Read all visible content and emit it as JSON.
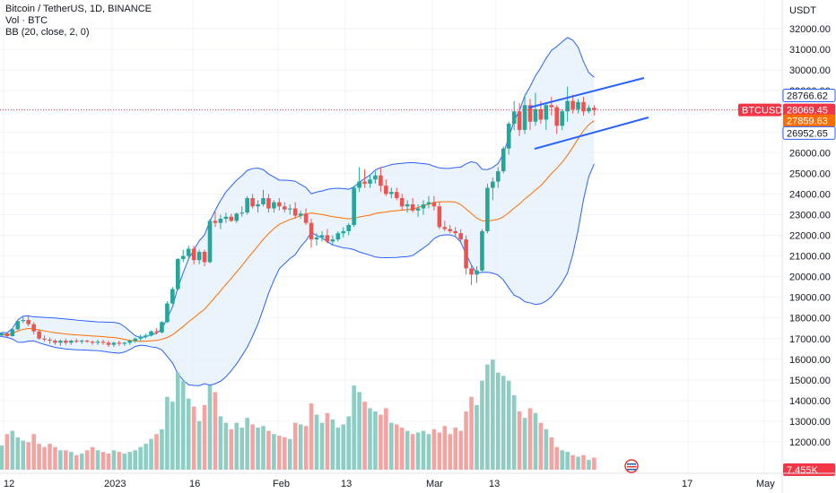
{
  "legend": {
    "line1": "Bitcoin / TetherUS, 1D, BINANCE",
    "line2": "Vol · BTC",
    "line3": "BB (20, close, 2, 0)"
  },
  "price_scale": {
    "unit": "USDT",
    "ticks": [
      "32000.00",
      "31000.00",
      "30000.00",
      "29000.00",
      "28000.00",
      "27000.00",
      "26000.00",
      "25000.00",
      "24000.00",
      "23000.00",
      "22000.00",
      "21000.00",
      "20000.00",
      "19000.00",
      "18000.00",
      "17000.00",
      "16000.00",
      "15000.00",
      "14000.00",
      "13000.00",
      "12000.00"
    ],
    "tick_values": [
      32000,
      31000,
      30000,
      29000,
      28000,
      27000,
      26000,
      25000,
      24000,
      23000,
      22000,
      21000,
      20000,
      19000,
      18000,
      17000,
      16000,
      15000,
      14000,
      13000,
      12000
    ]
  },
  "time_scale": {
    "labels": [
      "12",
      "2023",
      "16",
      "Feb",
      "13",
      "Mar",
      "13",
      "17",
      "May"
    ]
  },
  "price_tags": [
    {
      "text": "28766.62",
      "value": 28766.62,
      "style": "outline"
    },
    {
      "text": "BTCUSDT",
      "value": 28069.45,
      "style": "red-left"
    },
    {
      "text": "28069.45",
      "value": 28069.45,
      "style": "red"
    },
    {
      "text": "27859.63",
      "value": 27859.63,
      "style": "orange"
    },
    {
      "text": "26952.65",
      "value": 26952.65,
      "style": "outline"
    },
    {
      "text": "7.455K",
      "value": null,
      "style": "red-volume"
    }
  ],
  "colors": {
    "up": "#26a69a",
    "down": "#ef5350",
    "vol_up": "#8dcdc3",
    "vol_down": "#f5a3a1",
    "bb_band": "#2962ff",
    "bb_fill": "#e3f0fb",
    "basis": "#ff6d00",
    "trendline": "#2962ff",
    "last_price": "#f23645"
  },
  "chart_data": {
    "type": "candlestick",
    "symbol": "BTCUSDT",
    "interval": "1D",
    "exchange": "BINANCE",
    "ylim": [
      11600,
      32500
    ],
    "last_price": 28069.45,
    "candles": [
      [
        17100,
        17180,
        16980,
        17150,
        19
      ],
      [
        17150,
        17300,
        17080,
        17250,
        15
      ],
      [
        17250,
        17280,
        17080,
        17120,
        22
      ],
      [
        17120,
        17500,
        17100,
        17450,
        24
      ],
      [
        17450,
        17900,
        17400,
        17850,
        20
      ],
      [
        17850,
        18050,
        17750,
        17900,
        18
      ],
      [
        17900,
        18150,
        17600,
        17700,
        17
      ],
      [
        17700,
        17800,
        17200,
        17350,
        22
      ],
      [
        17350,
        17450,
        16950,
        17000,
        16
      ],
      [
        17000,
        17150,
        16850,
        16950,
        14
      ],
      [
        16950,
        17050,
        16750,
        16900,
        16
      ],
      [
        16900,
        16980,
        16700,
        16800,
        14
      ],
      [
        16800,
        16950,
        16650,
        16900,
        12
      ],
      [
        16900,
        17000,
        16700,
        16800,
        12
      ],
      [
        16800,
        16950,
        16700,
        16900,
        11
      ],
      [
        16900,
        17000,
        16800,
        16850,
        9
      ],
      [
        16850,
        16950,
        16750,
        16900,
        10
      ],
      [
        16900,
        16950,
        16800,
        16850,
        12
      ],
      [
        16850,
        16900,
        16700,
        16800,
        14
      ],
      [
        16800,
        16950,
        16700,
        16850,
        12
      ],
      [
        16850,
        16950,
        16700,
        16800,
        11
      ],
      [
        16800,
        16900,
        16600,
        16700,
        10
      ],
      [
        16700,
        16850,
        16600,
        16800,
        12
      ],
      [
        16800,
        16900,
        16650,
        16750,
        11
      ],
      [
        16750,
        16850,
        16650,
        16800,
        10
      ],
      [
        16800,
        16950,
        16700,
        16900,
        11
      ],
      [
        16900,
        17050,
        16800,
        17000,
        12
      ],
      [
        17000,
        17200,
        16900,
        17100,
        14
      ],
      [
        17100,
        17250,
        17000,
        17150,
        16
      ],
      [
        17150,
        17400,
        17100,
        17350,
        19
      ],
      [
        17350,
        17500,
        17200,
        17300,
        22
      ],
      [
        17300,
        17850,
        17250,
        17800,
        25
      ],
      [
        17800,
        18800,
        17750,
        18700,
        45
      ],
      [
        18700,
        19500,
        18650,
        19400,
        42
      ],
      [
        19400,
        20900,
        19350,
        20850,
        60
      ],
      [
        20850,
        21300,
        20700,
        21000,
        55
      ],
      [
        21000,
        21500,
        20800,
        21350,
        44
      ],
      [
        21350,
        21500,
        20600,
        20800,
        39
      ],
      [
        20800,
        21300,
        20600,
        21200,
        30
      ],
      [
        21200,
        21300,
        20500,
        20700,
        40
      ],
      [
        20700,
        22800,
        20650,
        22700,
        52
      ],
      [
        22700,
        23150,
        22400,
        22600,
        48
      ],
      [
        22600,
        23000,
        22300,
        22800,
        33
      ],
      [
        22800,
        23100,
        22600,
        22900,
        29
      ],
      [
        22900,
        23050,
        22650,
        22700,
        25
      ],
      [
        22700,
        23100,
        22600,
        23050,
        29
      ],
      [
        23050,
        23400,
        22900,
        23100,
        26
      ],
      [
        23100,
        23900,
        23000,
        23800,
        32
      ],
      [
        23800,
        24000,
        23300,
        23400,
        28
      ],
      [
        23400,
        23700,
        23100,
        23500,
        26
      ],
      [
        23500,
        24200,
        23400,
        23800,
        27
      ],
      [
        23800,
        24000,
        23100,
        23300,
        24
      ],
      [
        23300,
        23700,
        23100,
        23600,
        22
      ],
      [
        23600,
        23800,
        23200,
        23400,
        21
      ],
      [
        23400,
        23600,
        23100,
        23250,
        20
      ],
      [
        23250,
        23500,
        23000,
        23300,
        19
      ],
      [
        23300,
        23600,
        22800,
        22950,
        29
      ],
      [
        22950,
        23200,
        22800,
        23050,
        28
      ],
      [
        23050,
        23300,
        22500,
        22600,
        27
      ],
      [
        22600,
        22800,
        21400,
        21800,
        41
      ],
      [
        21800,
        22100,
        21500,
        21900,
        34
      ],
      [
        21900,
        22200,
        21700,
        22000,
        29
      ],
      [
        22000,
        22300,
        21600,
        21700,
        35
      ],
      [
        21700,
        22000,
        21500,
        21800,
        31
      ],
      [
        21800,
        22200,
        21700,
        22100,
        26
      ],
      [
        22100,
        22400,
        21900,
        22200,
        28
      ],
      [
        22200,
        22600,
        22000,
        22500,
        33
      ],
      [
        22500,
        24400,
        22400,
        24300,
        52
      ],
      [
        24300,
        25300,
        24100,
        24600,
        48
      ],
      [
        24600,
        25200,
        24300,
        24500,
        42
      ],
      [
        24500,
        24900,
        24300,
        24700,
        38
      ],
      [
        24700,
        25100,
        24500,
        24900,
        36
      ],
      [
        24900,
        25300,
        24100,
        24400,
        34
      ],
      [
        24400,
        24700,
        23900,
        24000,
        38
      ],
      [
        24000,
        24300,
        23800,
        24100,
        29
      ],
      [
        24100,
        24300,
        23700,
        23800,
        28
      ],
      [
        23800,
        24000,
        23200,
        23400,
        26
      ],
      [
        23400,
        23700,
        23100,
        23500,
        24
      ],
      [
        23500,
        23800,
        23100,
        23200,
        22
      ],
      [
        23200,
        23500,
        22900,
        23300,
        23
      ],
      [
        23300,
        23700,
        23000,
        23500,
        24
      ],
      [
        23500,
        23900,
        23300,
        23600,
        22
      ],
      [
        23600,
        23900,
        23200,
        23400,
        25
      ],
      [
        23400,
        23600,
        22300,
        22400,
        23
      ],
      [
        22400,
        22700,
        22200,
        22300,
        27
      ],
      [
        22300,
        22500,
        22100,
        22200,
        22
      ],
      [
        22200,
        22400,
        21900,
        22100,
        26
      ],
      [
        22100,
        22300,
        21700,
        21800,
        24
      ],
      [
        21800,
        22000,
        20100,
        20400,
        36
      ],
      [
        20400,
        20600,
        19600,
        20100,
        45
      ],
      [
        20100,
        20500,
        19700,
        20300,
        40
      ],
      [
        20300,
        22300,
        20200,
        22200,
        55
      ],
      [
        22200,
        24500,
        22100,
        24300,
        65
      ],
      [
        24300,
        24800,
        23700,
        24600,
        68
      ],
      [
        24600,
        25300,
        24300,
        25100,
        60
      ],
      [
        25100,
        26300,
        25000,
        26200,
        58
      ],
      [
        26200,
        27500,
        25900,
        27400,
        55
      ],
      [
        27400,
        28500,
        27100,
        28000,
        46
      ],
      [
        28000,
        28400,
        26800,
        27100,
        36
      ],
      [
        27100,
        28800,
        26900,
        28300,
        32
      ],
      [
        28300,
        28600,
        27100,
        27500,
        38
      ],
      [
        27500,
        28900,
        27300,
        28100,
        35
      ],
      [
        28100,
        28500,
        27400,
        27600,
        29
      ],
      [
        27600,
        28400,
        27100,
        28300,
        25
      ],
      [
        28300,
        28700,
        27800,
        28200,
        20
      ],
      [
        28200,
        28300,
        26900,
        27300,
        14
      ],
      [
        27300,
        28100,
        27100,
        28000,
        12
      ],
      [
        28000,
        29200,
        27500,
        28500,
        11
      ],
      [
        28500,
        28800,
        27900,
        28100,
        9
      ],
      [
        28100,
        28600,
        27900,
        28450,
        8
      ],
      [
        28450,
        28700,
        27800,
        28000,
        9
      ],
      [
        28000,
        28300,
        27900,
        28170,
        6
      ],
      [
        28170,
        28300,
        27800,
        28069.45,
        7.455
      ]
    ],
    "volume_scale_max": 72
  }
}
